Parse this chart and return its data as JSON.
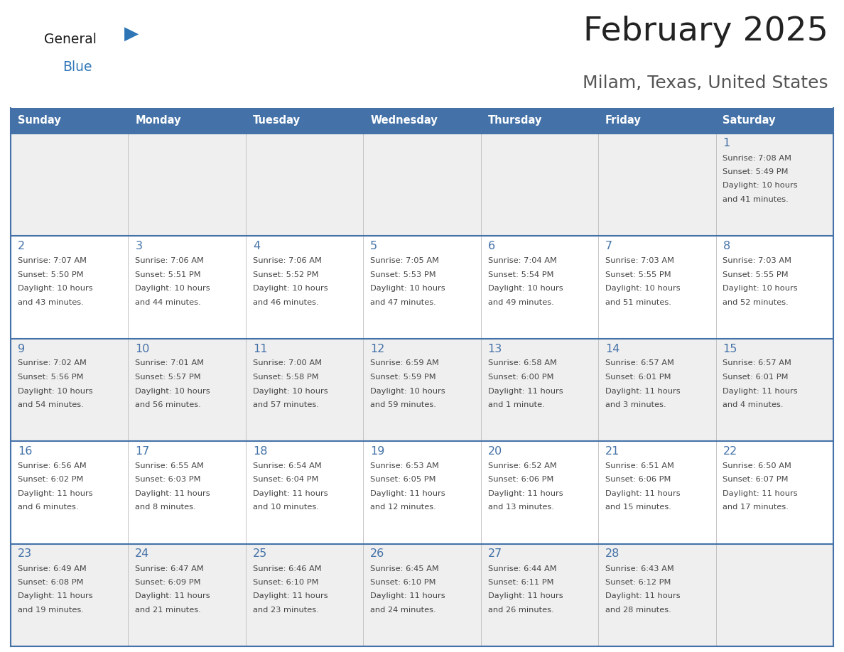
{
  "title": "February 2025",
  "subtitle": "Milam, Texas, United States",
  "header_color": "#4472A8",
  "header_text_color": "#FFFFFF",
  "day_names": [
    "Sunday",
    "Monday",
    "Tuesday",
    "Wednesday",
    "Thursday",
    "Friday",
    "Saturday"
  ],
  "row0_color": "#EFEFEF",
  "row1_color": "#FFFFFF",
  "row2_color": "#EFEFEF",
  "row3_color": "#FFFFFF",
  "row4_color": "#EFEFEF",
  "cell_text_color": "#444444",
  "day_number_color": "#4472A8",
  "border_color": "#4472A8",
  "title_color": "#222222",
  "subtitle_color": "#555555",
  "logo_general_color": "#1a1a1a",
  "logo_blue_color": "#2E75B6",
  "calendar": [
    [
      null,
      null,
      null,
      null,
      null,
      null,
      {
        "day": "1",
        "sunrise": "7:08 AM",
        "sunset": "5:49 PM",
        "daylight": "10 hours\nand 41 minutes."
      }
    ],
    [
      {
        "day": "2",
        "sunrise": "7:07 AM",
        "sunset": "5:50 PM",
        "daylight": "10 hours\nand 43 minutes."
      },
      {
        "day": "3",
        "sunrise": "7:06 AM",
        "sunset": "5:51 PM",
        "daylight": "10 hours\nand 44 minutes."
      },
      {
        "day": "4",
        "sunrise": "7:06 AM",
        "sunset": "5:52 PM",
        "daylight": "10 hours\nand 46 minutes."
      },
      {
        "day": "5",
        "sunrise": "7:05 AM",
        "sunset": "5:53 PM",
        "daylight": "10 hours\nand 47 minutes."
      },
      {
        "day": "6",
        "sunrise": "7:04 AM",
        "sunset": "5:54 PM",
        "daylight": "10 hours\nand 49 minutes."
      },
      {
        "day": "7",
        "sunrise": "7:03 AM",
        "sunset": "5:55 PM",
        "daylight": "10 hours\nand 51 minutes."
      },
      {
        "day": "8",
        "sunrise": "7:03 AM",
        "sunset": "5:55 PM",
        "daylight": "10 hours\nand 52 minutes."
      }
    ],
    [
      {
        "day": "9",
        "sunrise": "7:02 AM",
        "sunset": "5:56 PM",
        "daylight": "10 hours\nand 54 minutes."
      },
      {
        "day": "10",
        "sunrise": "7:01 AM",
        "sunset": "5:57 PM",
        "daylight": "10 hours\nand 56 minutes."
      },
      {
        "day": "11",
        "sunrise": "7:00 AM",
        "sunset": "5:58 PM",
        "daylight": "10 hours\nand 57 minutes."
      },
      {
        "day": "12",
        "sunrise": "6:59 AM",
        "sunset": "5:59 PM",
        "daylight": "10 hours\nand 59 minutes."
      },
      {
        "day": "13",
        "sunrise": "6:58 AM",
        "sunset": "6:00 PM",
        "daylight": "11 hours\nand 1 minute."
      },
      {
        "day": "14",
        "sunrise": "6:57 AM",
        "sunset": "6:01 PM",
        "daylight": "11 hours\nand 3 minutes."
      },
      {
        "day": "15",
        "sunrise": "6:57 AM",
        "sunset": "6:01 PM",
        "daylight": "11 hours\nand 4 minutes."
      }
    ],
    [
      {
        "day": "16",
        "sunrise": "6:56 AM",
        "sunset": "6:02 PM",
        "daylight": "11 hours\nand 6 minutes."
      },
      {
        "day": "17",
        "sunrise": "6:55 AM",
        "sunset": "6:03 PM",
        "daylight": "11 hours\nand 8 minutes."
      },
      {
        "day": "18",
        "sunrise": "6:54 AM",
        "sunset": "6:04 PM",
        "daylight": "11 hours\nand 10 minutes."
      },
      {
        "day": "19",
        "sunrise": "6:53 AM",
        "sunset": "6:05 PM",
        "daylight": "11 hours\nand 12 minutes."
      },
      {
        "day": "20",
        "sunrise": "6:52 AM",
        "sunset": "6:06 PM",
        "daylight": "11 hours\nand 13 minutes."
      },
      {
        "day": "21",
        "sunrise": "6:51 AM",
        "sunset": "6:06 PM",
        "daylight": "11 hours\nand 15 minutes."
      },
      {
        "day": "22",
        "sunrise": "6:50 AM",
        "sunset": "6:07 PM",
        "daylight": "11 hours\nand 17 minutes."
      }
    ],
    [
      {
        "day": "23",
        "sunrise": "6:49 AM",
        "sunset": "6:08 PM",
        "daylight": "11 hours\nand 19 minutes."
      },
      {
        "day": "24",
        "sunrise": "6:47 AM",
        "sunset": "6:09 PM",
        "daylight": "11 hours\nand 21 minutes."
      },
      {
        "day": "25",
        "sunrise": "6:46 AM",
        "sunset": "6:10 PM",
        "daylight": "11 hours\nand 23 minutes."
      },
      {
        "day": "26",
        "sunrise": "6:45 AM",
        "sunset": "6:10 PM",
        "daylight": "11 hours\nand 24 minutes."
      },
      {
        "day": "27",
        "sunrise": "6:44 AM",
        "sunset": "6:11 PM",
        "daylight": "11 hours\nand 26 minutes."
      },
      {
        "day": "28",
        "sunrise": "6:43 AM",
        "sunset": "6:12 PM",
        "daylight": "11 hours\nand 28 minutes."
      },
      null
    ]
  ]
}
